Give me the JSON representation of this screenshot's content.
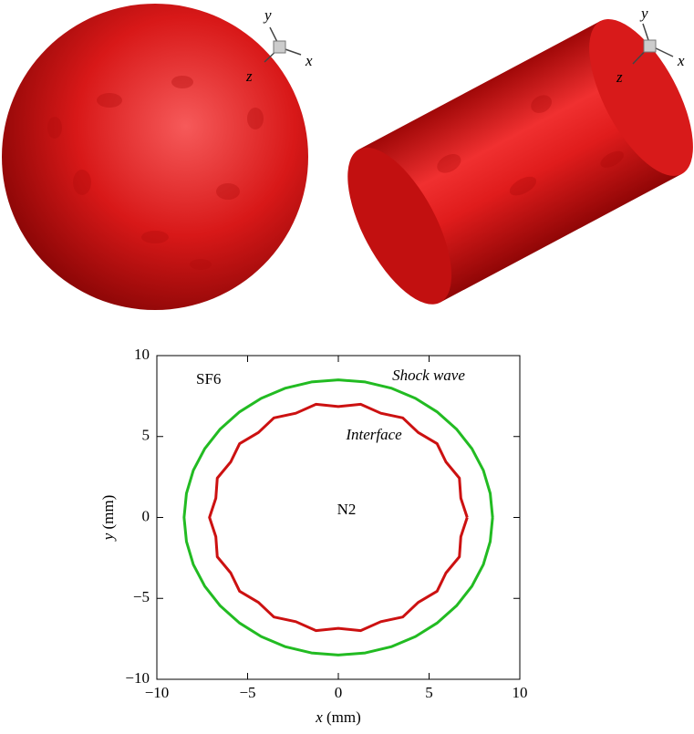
{
  "renderings": [
    {
      "axis_labels": [
        "y",
        "x",
        "z"
      ]
    },
    {
      "axis_labels": [
        "y",
        "x",
        "z"
      ]
    }
  ],
  "chart_data": {
    "type": "line",
    "xlabel_symbol": "x",
    "xlabel_unit": "(mm)",
    "ylabel_symbol": "y",
    "ylabel_unit": "(mm)",
    "xlim": [
      -10,
      10
    ],
    "ylim": [
      -10,
      10
    ],
    "xticks": [
      {
        "value": -10,
        "label": "−10"
      },
      {
        "value": -5,
        "label": "−5"
      },
      0,
      5,
      10
    ],
    "yticks": [
      {
        "value": -10,
        "label": "−10"
      },
      {
        "value": -5,
        "label": "−5"
      },
      0,
      5,
      10
    ],
    "annotations": [
      "SF6",
      "Shock wave",
      "Interface",
      "N2"
    ],
    "series": [
      {
        "name": "Shock wave",
        "color": "#22bb22",
        "x": [
          8.5,
          8.37,
          7.99,
          7.36,
          6.51,
          5.46,
          4.25,
          2.91,
          1.48,
          0,
          -1.48,
          -2.91,
          -4.25,
          -5.46,
          -6.51,
          -7.36,
          -7.99,
          -8.37,
          -8.5,
          -8.37,
          -7.99,
          -7.36,
          -6.51,
          -5.46,
          -4.25,
          -2.91,
          -1.48,
          0,
          1.48,
          2.91,
          4.25,
          5.46,
          6.51,
          7.36,
          7.99,
          8.37,
          8.5
        ],
        "values": [
          0,
          1.48,
          2.91,
          4.25,
          5.46,
          6.51,
          7.36,
          7.99,
          8.37,
          8.5,
          8.37,
          7.99,
          7.36,
          6.51,
          5.46,
          4.25,
          2.91,
          1.48,
          0,
          -1.48,
          -2.91,
          -4.25,
          -5.46,
          -6.51,
          -7.36,
          -7.99,
          -8.37,
          -8.5,
          -8.37,
          -7.99,
          -7.36,
          -6.51,
          -5.46,
          -4.25,
          -2.91,
          -1.48,
          0
        ]
      },
      {
        "name": "Interface",
        "color": "#cc1111",
        "x": [
          7.1,
          6.75,
          6.67,
          5.93,
          5.44,
          4.4,
          3.55,
          2.34,
          1.23,
          0,
          -1.23,
          -2.34,
          -3.55,
          -4.4,
          -5.44,
          -5.93,
          -6.67,
          -6.75,
          -7.1,
          -6.75,
          -6.67,
          -5.93,
          -5.44,
          -4.4,
          -3.55,
          -2.34,
          -1.23,
          0,
          1.23,
          2.34,
          3.55,
          4.4,
          5.44,
          5.93,
          6.67,
          6.75,
          7.1
        ],
        "values": [
          0,
          1.19,
          2.43,
          3.43,
          4.56,
          5.25,
          6.15,
          6.44,
          6.99,
          6.85,
          6.99,
          6.44,
          6.15,
          5.25,
          4.56,
          3.43,
          2.43,
          1.19,
          0,
          -1.19,
          -2.43,
          -3.43,
          -4.56,
          -5.25,
          -6.15,
          -6.44,
          -6.99,
          -6.85,
          -6.99,
          -6.44,
          -6.15,
          -5.25,
          -4.56,
          -3.43,
          -2.43,
          -1.19,
          0
        ]
      }
    ]
  }
}
